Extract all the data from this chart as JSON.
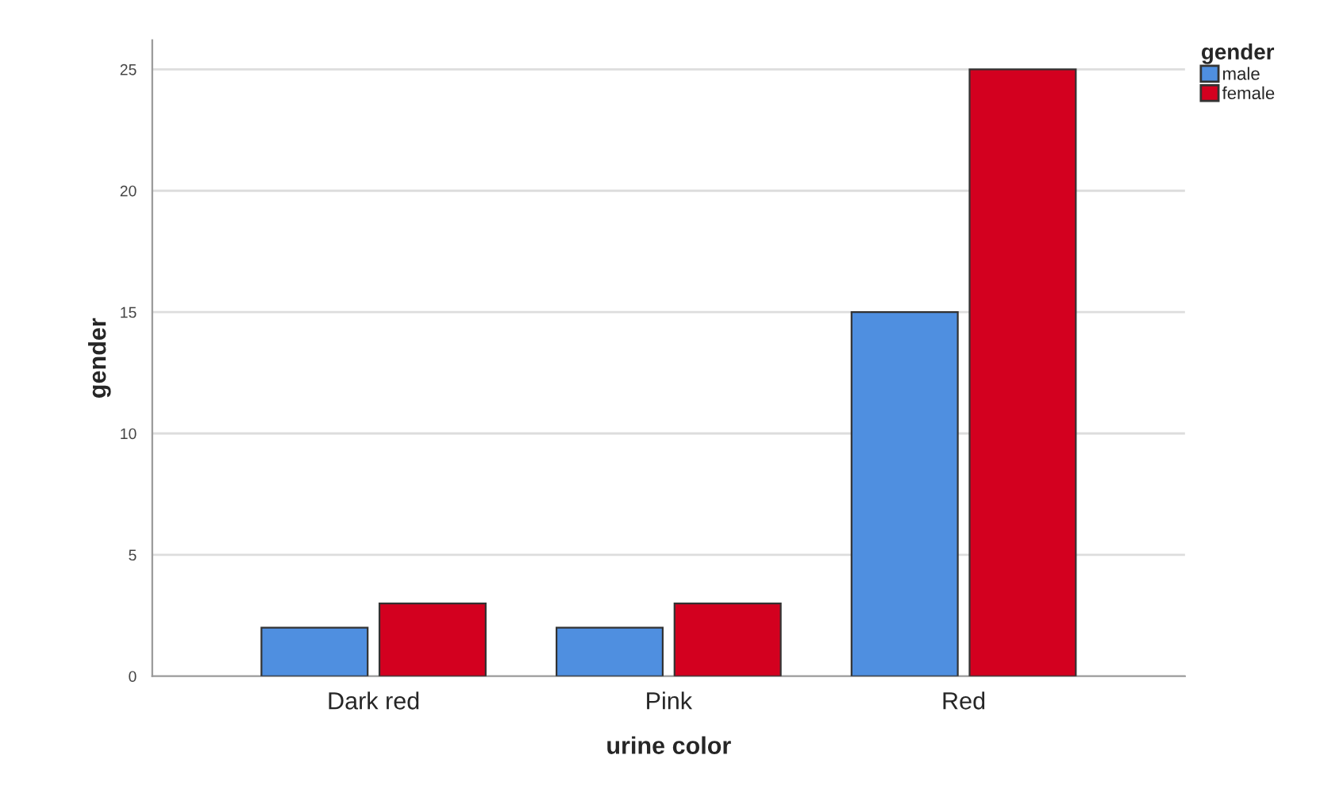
{
  "chart_data": {
    "type": "bar",
    "xlabel": "urine color",
    "ylabel": "gender",
    "legend_title": "gender",
    "categories": [
      "Dark red",
      "Pink",
      "Red"
    ],
    "series": [
      {
        "name": "male",
        "color": "#4f8fe0",
        "values": [
          2,
          2,
          15
        ]
      },
      {
        "name": "female",
        "color": "#d3001f",
        "values": [
          3,
          3,
          25
        ]
      }
    ],
    "ylim": [
      0,
      26.2
    ],
    "yticks": [
      0,
      5,
      10,
      15,
      20,
      25
    ],
    "grid": "y",
    "legend": "top right"
  }
}
